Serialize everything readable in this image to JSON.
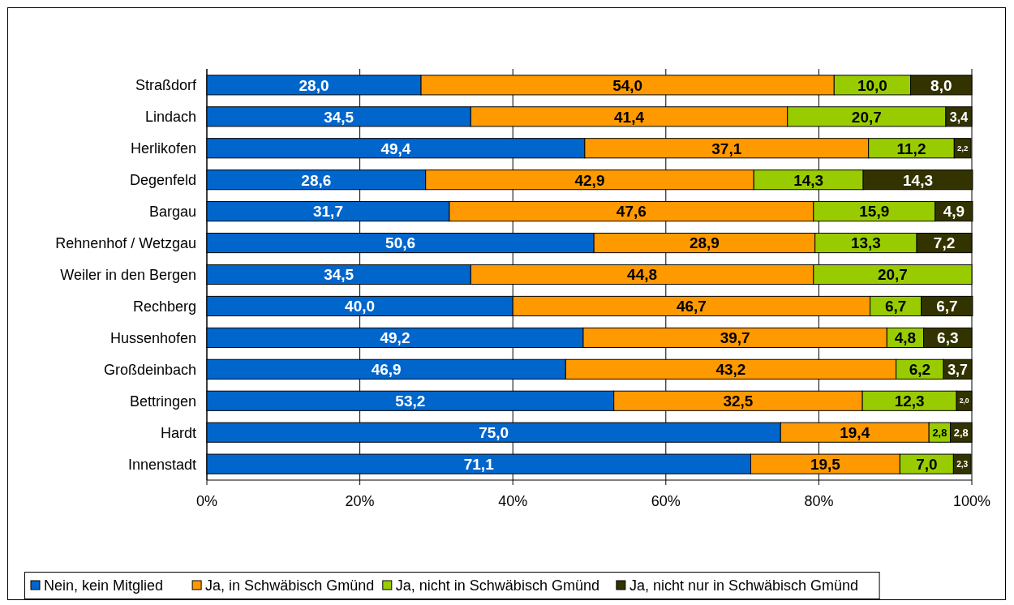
{
  "chart_data": {
    "type": "bar",
    "orientation": "horizontal",
    "stacked": true,
    "categories": [
      "Straßdorf",
      "Lindach",
      "Herlikofen",
      "Degenfeld",
      "Bargau",
      "Rehnenhof / Wetzgau",
      "Weiler in den Bergen",
      "Rechberg",
      "Hussenhofen",
      "Großdeinbach",
      "Bettringen",
      "Hardt",
      "Innenstadt"
    ],
    "series": [
      {
        "name": "Nein, kein Mitglied",
        "color": "#0066cc",
        "values": [
          28.0,
          34.5,
          49.4,
          28.6,
          31.7,
          50.6,
          34.5,
          40.0,
          49.2,
          46.9,
          53.2,
          75.0,
          71.1
        ],
        "value_labels": [
          "28,0",
          "34,5",
          "49,4",
          "28,6",
          "31,7",
          "50,6",
          "34,5",
          "40,0",
          "49,2",
          "46,9",
          "53,2",
          "75,0",
          "71,1"
        ]
      },
      {
        "name": "Ja, in Schwäbisch Gmünd",
        "color": "#ff9900",
        "values": [
          54.0,
          41.4,
          37.1,
          42.9,
          47.6,
          28.9,
          44.8,
          46.7,
          39.7,
          43.2,
          32.5,
          19.4,
          19.5
        ],
        "value_labels": [
          "54,0",
          "41,4",
          "37,1",
          "42,9",
          "47,6",
          "28,9",
          "44,8",
          "46,7",
          "39,7",
          "43,2",
          "32,5",
          "19,4",
          "19,5"
        ]
      },
      {
        "name": "Ja, nicht in Schwäbisch Gmünd",
        "color": "#99cc00",
        "values": [
          10.0,
          20.7,
          11.2,
          14.3,
          15.9,
          13.3,
          20.7,
          6.7,
          4.8,
          6.2,
          12.3,
          2.8,
          7.0
        ],
        "value_labels": [
          "10,0",
          "20,7",
          "11,2",
          "14,3",
          "15,9",
          "13,3",
          "20,7",
          "6,7",
          "4,8",
          "6,2",
          "12,3",
          "2,8",
          "7,0"
        ]
      },
      {
        "name": "Ja, nicht nur in Schwäbisch Gmünd",
        "color": "#333300",
        "values": [
          8.0,
          3.4,
          2.2,
          14.3,
          4.9,
          7.2,
          null,
          6.7,
          6.3,
          3.7,
          2.0,
          2.8,
          2.3
        ],
        "value_labels": [
          "8,0",
          "3,4",
          "2,2",
          "14,3",
          "4,9",
          "7,2",
          null,
          "6,7",
          "6,3",
          "3,7",
          "2,0",
          "2,8",
          "2,3"
        ]
      }
    ],
    "xlim": [
      0,
      100
    ],
    "xticks": [
      {
        "value": 0,
        "label": "0%"
      },
      {
        "value": 20,
        "label": "20%"
      },
      {
        "value": 40,
        "label": "40%"
      },
      {
        "value": 60,
        "label": "60%"
      },
      {
        "value": 80,
        "label": "80%"
      },
      {
        "value": 100,
        "label": "100%"
      }
    ],
    "grid": "x",
    "legend": "bottom"
  }
}
